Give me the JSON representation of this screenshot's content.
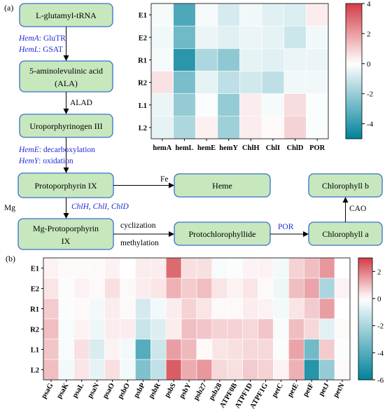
{
  "panel_a_label": "(a)",
  "panel_b_label": "(b)",
  "pathway": {
    "glutamyl_trna": "L-glutamyl-tRNA",
    "hemA_gene": "HemA",
    "hemA_enzyme": "GluTR",
    "hemL_gene": "HemL",
    "hemL_enzyme": "GSAT",
    "ala_line1": "5-aminolevulinic acid",
    "ala_line2": "(ALA)",
    "alad": "ALAD",
    "uroporphyrinogen": "Uroporphyrinogen III",
    "hemE_gene": "HemE",
    "hemE_enzyme": "decarboxylation",
    "hemY_gene": "HemY",
    "hemY_enzyme": "oxidation",
    "protoporphyrin": "Protoporphyrin IX",
    "fe": "Fe",
    "heme": "Heme",
    "mg": "Mg",
    "chl_genes": "ChlH, ChlI, ChlD",
    "mg_proto_line1": "Mg-Protoporphyrin",
    "mg_proto_line2": "IX",
    "cyclization": "cyclization",
    "methylation": "methylation",
    "protochlorophyllide": "Protochlorophyllide",
    "por": "POR",
    "chlorophyll_a": "Chlorophyll a",
    "cao": "CAO",
    "chlorophyll_b": "Chlorophyll b"
  },
  "chart_data": [
    {
      "type": "heatmap",
      "rows": [
        "E1",
        "E2",
        "R1",
        "R2",
        "L1",
        "L2"
      ],
      "columns": [
        "hemA",
        "hemL",
        "hemE",
        "hemY",
        "ChlH",
        "ChlI",
        "ChlD",
        "POR"
      ],
      "values": [
        [
          -0.2,
          -3.5,
          -0.2,
          -0.8,
          -0.3,
          -0.6,
          -0.7,
          0.4
        ],
        [
          -0.3,
          -2.8,
          -0.4,
          -0.6,
          -0.4,
          -0.5,
          -1.0,
          -0.3
        ],
        [
          -0.2,
          -4.2,
          -1.6,
          -2.2,
          -0.5,
          -0.6,
          -0.4,
          -0.4
        ],
        [
          0.6,
          -2.6,
          -0.5,
          -1.3,
          -0.9,
          -1.3,
          -0.3,
          -0.3
        ],
        [
          -0.4,
          -2.1,
          -0.1,
          -2.1,
          0.4,
          -0.2,
          0.7,
          -0.1
        ],
        [
          -0.5,
          -1.6,
          0.3,
          -1.9,
          0.4,
          0.1,
          0.9,
          -0.1
        ]
      ],
      "colorbar_ticks": [
        4,
        2,
        0,
        -2,
        -4
      ],
      "range": [
        -5,
        4
      ]
    },
    {
      "type": "heatmap",
      "rows": [
        "E1",
        "E2",
        "R1",
        "R2",
        "L1",
        "L2"
      ],
      "columns": [
        "psaG",
        "psaK",
        "psaL",
        "psaN",
        "psaO",
        "psbO",
        "psbP",
        "psbR",
        "psbS",
        "psbY",
        "psb27",
        "psb28",
        "ATPF0B",
        "ATPF1D",
        "ATPF1G",
        "petC",
        "petE",
        "petF",
        "petJ",
        "petN"
      ],
      "values": [
        [
          0.2,
          0.1,
          0.1,
          0.1,
          0.2,
          0.0,
          0.3,
          0.3,
          2.3,
          0.5,
          0.5,
          -0.2,
          -0.1,
          0.2,
          0.2,
          -0.3,
          0.7,
          1.0,
          1.6,
          0.0
        ],
        [
          0.4,
          -0.1,
          0.2,
          0.1,
          0.5,
          0.1,
          0.3,
          0.4,
          1.2,
          0.8,
          1.0,
          0.4,
          0.2,
          0.4,
          0.1,
          -0.4,
          1.0,
          1.4,
          -2.0,
          0.2
        ],
        [
          0.8,
          -0.1,
          0.1,
          -0.3,
          0.3,
          0.1,
          -1.0,
          -0.3,
          0.3,
          0.7,
          0.4,
          0.1,
          0.1,
          0.3,
          0.2,
          -0.3,
          0.4,
          0.8,
          1.5,
          0.0
        ],
        [
          1.0,
          -0.2,
          0.2,
          -0.4,
          0.3,
          0.3,
          -1.3,
          -0.8,
          0.3,
          1.0,
          0.9,
          0.7,
          0.7,
          0.6,
          0.9,
          -0.2,
          1.0,
          0.6,
          -0.7,
          0.1
        ],
        [
          0.9,
          -0.2,
          0.5,
          -0.9,
          0.2,
          -0.3,
          -4.0,
          -1.2,
          1.5,
          1.1,
          0.1,
          0.4,
          0.5,
          0.6,
          0.6,
          -0.1,
          1.4,
          -3.3,
          0.8,
          -0.1
        ],
        [
          1.0,
          -0.3,
          0.4,
          -0.6,
          0.5,
          -0.3,
          -3.0,
          -1.5,
          2.5,
          1.3,
          1.6,
          0.6,
          0.5,
          0.8,
          0.7,
          0.2,
          1.2,
          -5.1,
          -2.5,
          0.1
        ]
      ],
      "colorbar_ticks": [
        2,
        0,
        -2,
        -4,
        -6
      ],
      "range": [
        -6,
        3
      ]
    }
  ]
}
